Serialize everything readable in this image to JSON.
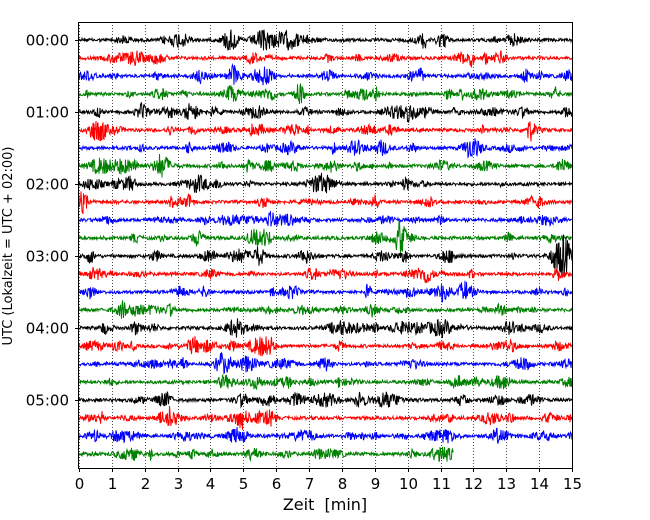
{
  "chart_data": {
    "type": "line",
    "title": "",
    "xlabel": "Zeit  [min]",
    "ylabel": "UTC (Lokalzeit = UTC + 02:00)",
    "xlim": [
      0,
      15
    ],
    "x_ticks": [
      "0",
      "1",
      "2",
      "3",
      "4",
      "5",
      "6",
      "7",
      "8",
      "9",
      "10",
      "11",
      "12",
      "13",
      "14",
      "15"
    ],
    "y_ticks": [
      {
        "label": "00:00",
        "trace": 0
      },
      {
        "label": "01:00",
        "trace": 4
      },
      {
        "label": "02:00",
        "trace": 8
      },
      {
        "label": "03:00",
        "trace": 12
      },
      {
        "label": "04:00",
        "trace": 16
      },
      {
        "label": "05:00",
        "trace": 20
      }
    ],
    "grid": "vertical dotted at each minute",
    "trace_interval_min": 15,
    "color_cycle": [
      "#000000",
      "#ff0000",
      "#0000ff",
      "#008000"
    ],
    "series": [
      {
        "start": "00:00",
        "end_min": 15
      },
      {
        "start": "00:15",
        "end_min": 15
      },
      {
        "start": "00:30",
        "end_min": 15
      },
      {
        "start": "00:45",
        "end_min": 15
      },
      {
        "start": "01:00",
        "end_min": 15
      },
      {
        "start": "01:15",
        "end_min": 15
      },
      {
        "start": "01:30",
        "end_min": 15
      },
      {
        "start": "01:45",
        "end_min": 15
      },
      {
        "start": "02:00",
        "end_min": 15
      },
      {
        "start": "02:15",
        "end_min": 15
      },
      {
        "start": "02:30",
        "end_min": 15
      },
      {
        "start": "02:45",
        "end_min": 15
      },
      {
        "start": "03:00",
        "end_min": 15
      },
      {
        "start": "03:15",
        "end_min": 15
      },
      {
        "start": "03:30",
        "end_min": 15
      },
      {
        "start": "03:45",
        "end_min": 15
      },
      {
        "start": "04:00",
        "end_min": 15
      },
      {
        "start": "04:15",
        "end_min": 15
      },
      {
        "start": "04:30",
        "end_min": 15
      },
      {
        "start": "04:45",
        "end_min": 15
      },
      {
        "start": "05:00",
        "end_min": 15
      },
      {
        "start": "05:15",
        "end_min": 15
      },
      {
        "start": "05:30",
        "end_min": 15
      },
      {
        "start": "05:45",
        "end_min": 11.4
      }
    ]
  }
}
